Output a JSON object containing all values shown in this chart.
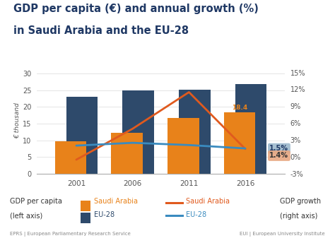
{
  "title_line1": "GDP per capita (€) and annual growth (%)",
  "title_line2": "in Saudi Arabia and the EU-28",
  "years": [
    2001,
    2006,
    2011,
    2016
  ],
  "gdp_saudi": [
    9.7,
    12.2,
    16.6,
    18.4
  ],
  "gdp_eu28": [
    23.0,
    25.0,
    25.2,
    26.9
  ],
  "growth_saudi": [
    -0.5,
    5.0,
    11.5,
    1.4
  ],
  "growth_eu28": [
    2.0,
    2.5,
    2.1,
    1.5
  ],
  "color_saudi_bar": "#E8821A",
  "color_eu28_bar": "#2E4A6B",
  "color_saudi_line": "#E05A1E",
  "color_eu28_line": "#3A8BBF",
  "ylim_left": [
    0,
    32
  ],
  "ylim_right": [
    -3,
    16
  ],
  "yticks_left": [
    0,
    5,
    10,
    15,
    20,
    25,
    30
  ],
  "yticks_right_vals": [
    -3,
    0,
    3,
    6,
    9,
    12,
    15
  ],
  "yticks_right_labels": [
    "-3%",
    "0%",
    "3%",
    "6%",
    "9%",
    "12%",
    "15%"
  ],
  "title_color": "#1F3864",
  "label_color": "#555555",
  "footer_left": "EPRS | European Parliamentary Research Service",
  "footer_right": "EUI | European University Institute",
  "bg_color": "#FFFFFF",
  "annotation_box_eu_color": "#9BB8CC",
  "annotation_box_sa_color": "#E8A882"
}
